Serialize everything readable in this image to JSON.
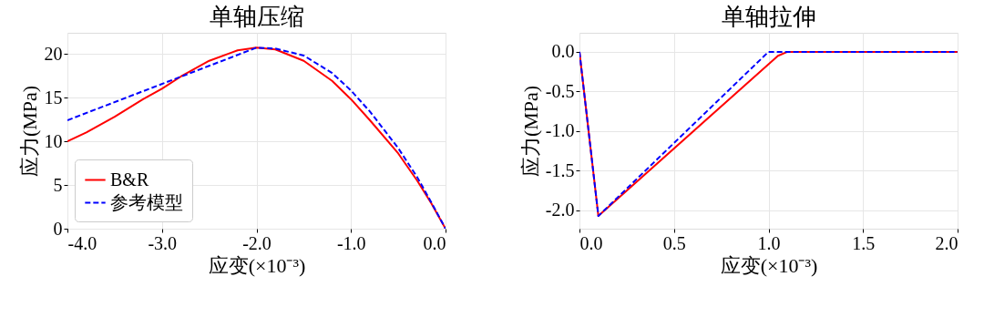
{
  "chart_data": [
    {
      "type": "line",
      "title": "单轴压缩",
      "xlabel": "应变(×10⁻³)",
      "ylabel": "应力(MPa)",
      "xlim": [
        -4,
        0
      ],
      "ylim": [
        0,
        22.4
      ],
      "xticks": [
        {
          "value": -4,
          "label": "-4.0"
        },
        {
          "value": -3,
          "label": "-3.0"
        },
        {
          "value": -2,
          "label": "-2.0"
        },
        {
          "value": -1,
          "label": "-1.0"
        },
        {
          "value": 0,
          "label": "0.0"
        }
      ],
      "yticks": [
        0,
        5,
        10,
        15,
        20
      ],
      "grid": true,
      "legend": "bottom left",
      "series": [
        {
          "name": "B&R",
          "color": "#ff0000",
          "line_style": "solid",
          "x": [
            -4,
            -3.8,
            -3.5,
            -3.2,
            -3,
            -2.8,
            -2.5,
            -2.2,
            -2,
            -1.8,
            -1.5,
            -1.2,
            -1,
            -0.8,
            -0.5,
            -0.3,
            -0.15,
            0
          ],
          "values": [
            10,
            11,
            12.8,
            14.8,
            16,
            17.4,
            19.2,
            20.4,
            20.7,
            20.5,
            19.2,
            16.9,
            14.8,
            12.4,
            8.6,
            5.5,
            2.9,
            0
          ]
        },
        {
          "name": "参考模型",
          "color": "#0000ff",
          "line_style": "dashed",
          "x": [
            -4,
            -2,
            -1.8,
            -1.5,
            -1.2,
            -1,
            -0.8,
            -0.5,
            -0.3,
            -0.15,
            0
          ],
          "values": [
            12.4,
            20.7,
            20.6,
            19.8,
            17.8,
            15.8,
            13.4,
            9.2,
            5.9,
            3.0,
            0
          ]
        }
      ]
    },
    {
      "type": "line",
      "title": "单轴拉伸",
      "xlabel": "应变(×10⁻³)",
      "ylabel": "应力(MPa)",
      "xlim": [
        0,
        2
      ],
      "ylim": [
        -2.23,
        0.24
      ],
      "xticks": [
        {
          "value": 0,
          "label": "0.0"
        },
        {
          "value": 0.5,
          "label": "0.5"
        },
        {
          "value": 1,
          "label": "1.0"
        },
        {
          "value": 1.5,
          "label": "1.5"
        },
        {
          "value": 2,
          "label": "2.0"
        }
      ],
      "yticks": [
        {
          "value": 0,
          "label": "0.0"
        },
        {
          "value": -0.5,
          "label": "-0.5"
        },
        {
          "value": -1,
          "label": "-1.0"
        },
        {
          "value": -1.5,
          "label": "-1.5"
        },
        {
          "value": -2,
          "label": "-2.0"
        }
      ],
      "grid": true,
      "series": [
        {
          "color": "#ff0000",
          "line_style": "solid",
          "x": [
            0,
            0.1,
            1.05,
            1.1,
            2
          ],
          "values": [
            0,
            -2.07,
            -0.05,
            0,
            0
          ]
        },
        {
          "color": "#0000ff",
          "line_style": "dashed",
          "x": [
            0,
            0.1,
            1.0,
            2
          ],
          "values": [
            0,
            -2.07,
            0,
            0
          ]
        }
      ]
    }
  ]
}
